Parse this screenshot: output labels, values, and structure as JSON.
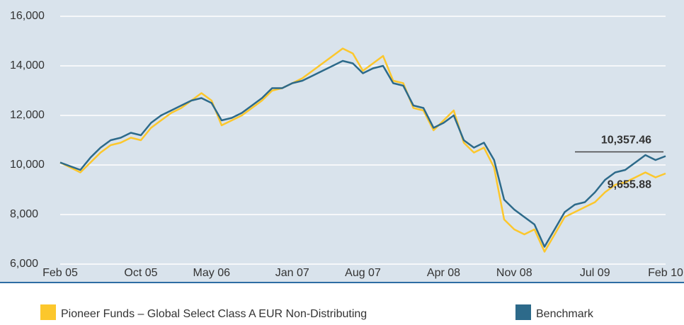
{
  "chart_data": {
    "type": "line",
    "categories": [
      "Feb 05",
      null,
      null,
      null,
      null,
      null,
      null,
      null,
      "Oct 05",
      null,
      null,
      null,
      null,
      null,
      null,
      "May 06",
      null,
      null,
      null,
      null,
      null,
      null,
      null,
      "Jan 07",
      null,
      null,
      null,
      null,
      null,
      null,
      "Aug 07",
      null,
      null,
      null,
      null,
      null,
      null,
      null,
      "Apr 08",
      null,
      null,
      null,
      null,
      null,
      null,
      "Nov 08",
      null,
      null,
      null,
      null,
      null,
      null,
      null,
      "Jul 09",
      null,
      null,
      null,
      null,
      null,
      null,
      "Feb 10"
    ],
    "series": [
      {
        "name": "Pioneer Funds – Global Select Class A EUR Non-Distributing",
        "color": "#fcc72c",
        "values": [
          10100,
          9900,
          9700,
          10100,
          10500,
          10800,
          10900,
          11100,
          11000,
          11500,
          11800,
          12100,
          12300,
          12600,
          12900,
          12600,
          11600,
          11800,
          12000,
          12300,
          12600,
          13000,
          13100,
          13300,
          13500,
          13800,
          14100,
          14400,
          14700,
          14500,
          13800,
          14100,
          14400,
          13400,
          13300,
          12300,
          12200,
          11400,
          11800,
          12200,
          10900,
          10500,
          10700,
          9900,
          7800,
          7400,
          7200,
          7400,
          6500,
          7200,
          7900,
          8100,
          8300,
          8500,
          8900,
          9200,
          9300,
          9500,
          9700,
          9500,
          9655.88
        ],
        "value_labels": [
          null,
          null,
          null,
          null,
          null,
          null,
          null,
          null,
          null,
          null,
          null,
          null,
          null,
          null,
          null,
          null,
          null,
          null,
          null,
          null,
          null,
          null,
          null,
          null,
          null,
          null,
          null,
          null,
          null,
          null,
          null,
          null,
          null,
          null,
          null,
          null,
          null,
          null,
          null,
          null,
          null,
          null,
          null,
          null,
          null,
          null,
          null,
          null,
          null,
          null,
          null,
          null,
          null,
          null,
          null,
          null,
          null,
          null,
          null,
          null,
          "9,655.88"
        ]
      },
      {
        "name": "Benchmark",
        "color": "#2d6a8a",
        "values": [
          10100,
          9950,
          9800,
          10300,
          10700,
          11000,
          11100,
          11300,
          11200,
          11700,
          12000,
          12200,
          12400,
          12600,
          12700,
          12500,
          11800,
          11900,
          12100,
          12400,
          12700,
          13100,
          13100,
          13300,
          13400,
          13600,
          13800,
          14000,
          14200,
          14100,
          13700,
          13900,
          14000,
          13300,
          13200,
          12400,
          12300,
          11500,
          11700,
          12000,
          11000,
          10700,
          10900,
          10200,
          8600,
          8200,
          7900,
          7600,
          6700,
          7400,
          8100,
          8400,
          8500,
          8900,
          9400,
          9700,
          9800,
          10100,
          10400,
          10200,
          10357.46
        ],
        "value_labels": [
          null,
          null,
          null,
          null,
          null,
          null,
          null,
          null,
          null,
          null,
          null,
          null,
          null,
          null,
          null,
          null,
          null,
          null,
          null,
          null,
          null,
          null,
          null,
          null,
          null,
          null,
          null,
          null,
          null,
          null,
          null,
          null,
          null,
          null,
          null,
          null,
          null,
          null,
          null,
          null,
          null,
          null,
          null,
          null,
          null,
          null,
          null,
          null,
          null,
          null,
          null,
          null,
          null,
          null,
          null,
          null,
          null,
          null,
          null,
          null,
          "10,357.46"
        ]
      }
    ],
    "ylim": [
      6000,
      16000
    ],
    "yticks": [
      {
        "value": 6000,
        "label": "6,000"
      },
      {
        "value": 8000,
        "label": "8,000"
      },
      {
        "value": 10000,
        "label": "10,000"
      },
      {
        "value": 12000,
        "label": "12,000"
      },
      {
        "value": 14000,
        "label": "14,000"
      },
      {
        "value": 16000,
        "label": "16,000"
      }
    ],
    "grid": true
  }
}
